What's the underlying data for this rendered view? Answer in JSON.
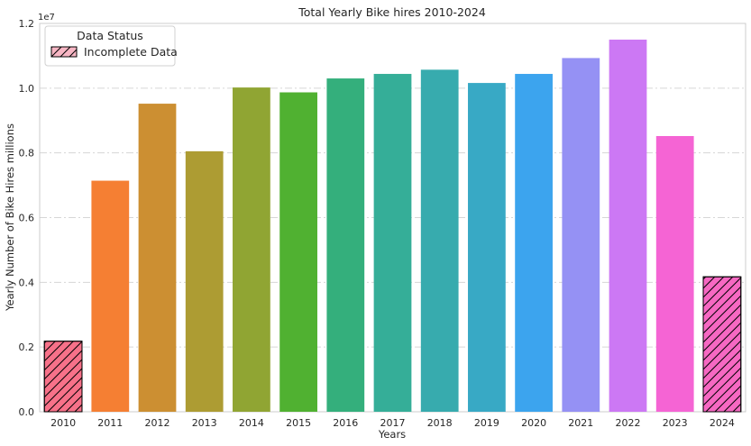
{
  "chart_data": {
    "type": "bar",
    "title": "Total Yearly Bike hires 2010-2024",
    "xlabel": "Years",
    "ylabel": "Yearly Number of Bike Hires millions",
    "y_offset_label": "1e7",
    "ylim": [
      0,
      12000000
    ],
    "yticks": [
      0,
      2000000,
      4000000,
      6000000,
      8000000,
      10000000,
      12000000
    ],
    "ytick_labels": [
      "0.0",
      "0.2",
      "0.4",
      "0.6",
      "0.8",
      "1.0",
      "1.2"
    ],
    "grid": "horizontal dash-dot",
    "categories": [
      "2010",
      "2011",
      "2012",
      "2013",
      "2014",
      "2015",
      "2016",
      "2017",
      "2018",
      "2019",
      "2020",
      "2021",
      "2022",
      "2023",
      "2024"
    ],
    "values": [
      2180000,
      7140000,
      9520000,
      8050000,
      10020000,
      9870000,
      10300000,
      10440000,
      10570000,
      10160000,
      10440000,
      10930000,
      11500000,
      8520000,
      4170000
    ],
    "colors": [
      "#f77189",
      "#f57f33",
      "#cc8f32",
      "#ad9c33",
      "#90a533",
      "#50b131",
      "#34af7c",
      "#35ae98",
      "#37abae",
      "#38a9c5",
      "#3ca4ee",
      "#9591f4",
      "#cc78f4",
      "#f564d4",
      "#f668c2"
    ],
    "hatched": [
      true,
      false,
      false,
      false,
      false,
      false,
      false,
      false,
      false,
      false,
      false,
      false,
      false,
      false,
      true
    ],
    "legend": {
      "title": "Data Status",
      "entries": [
        {
          "label": "Incomplete Data",
          "color": "#f7b6c4",
          "hatched": true
        }
      ],
      "placement": "top-left"
    }
  }
}
